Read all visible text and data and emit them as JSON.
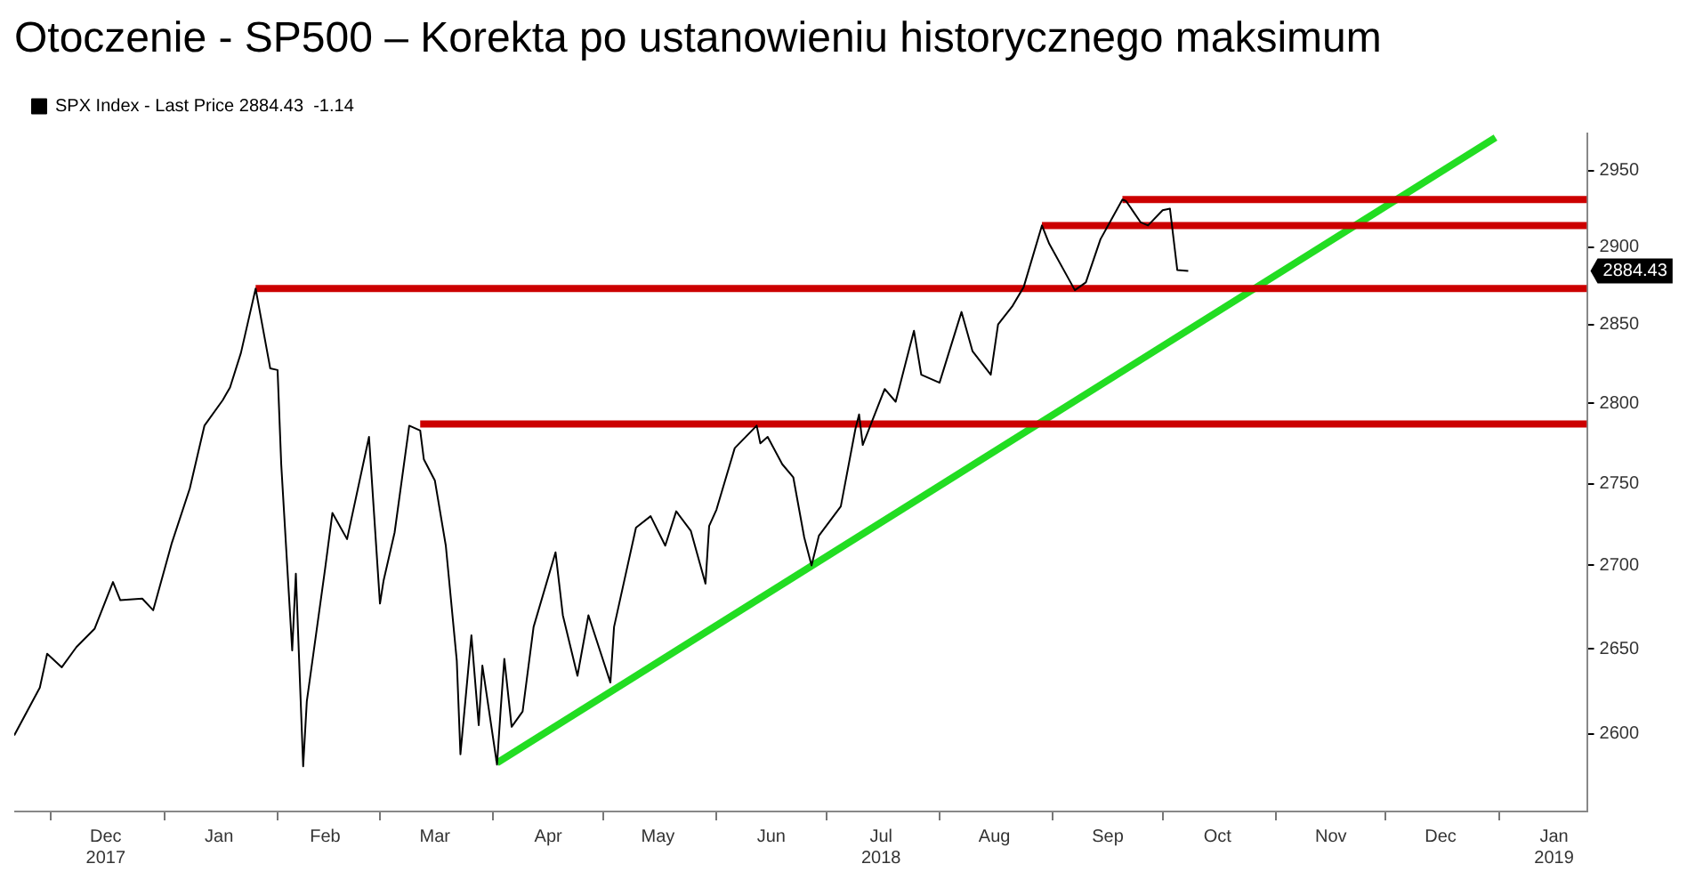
{
  "chart_data": {
    "type": "line",
    "title": "Otoczenie - SP500 – Korekta po ustanowieniu historycznego maksimum",
    "xlim": [
      "2017-11-21",
      "2019-01-25"
    ],
    "xticks": [
      {
        "value": "2017-12-01",
        "label": null
      },
      {
        "value": "2017-12-16",
        "label": "Dec\n2017"
      },
      {
        "value": "2018-01-01",
        "label": null
      },
      {
        "value": "2018-01-16",
        "label": "Jan"
      },
      {
        "value": "2018-02-01",
        "label": null
      },
      {
        "value": "2018-02-14",
        "label": "Feb"
      },
      {
        "value": "2018-03-01",
        "label": null
      },
      {
        "value": "2018-03-16",
        "label": "Mar"
      },
      {
        "value": "2018-04-01",
        "label": null
      },
      {
        "value": "2018-04-16",
        "label": "Apr"
      },
      {
        "value": "2018-05-01",
        "label": null
      },
      {
        "value": "2018-05-16",
        "label": "May"
      },
      {
        "value": "2018-06-01",
        "label": null
      },
      {
        "value": "2018-06-16",
        "label": "Jun"
      },
      {
        "value": "2018-07-01",
        "label": null
      },
      {
        "value": "2018-07-16",
        "label": "Jul\n2018"
      },
      {
        "value": "2018-08-01",
        "label": null
      },
      {
        "value": "2018-08-16",
        "label": "Aug"
      },
      {
        "value": "2018-09-01",
        "label": null
      },
      {
        "value": "2018-09-16",
        "label": "Sep"
      },
      {
        "value": "2018-10-01",
        "label": null
      },
      {
        "value": "2018-10-16",
        "label": "Oct"
      },
      {
        "value": "2018-11-01",
        "label": null
      },
      {
        "value": "2018-11-16",
        "label": "Nov"
      },
      {
        "value": "2018-12-01",
        "label": null
      },
      {
        "value": "2018-12-16",
        "label": "Dec"
      },
      {
        "value": "2019-01-01",
        "label": null
      },
      {
        "value": "2019-01-16",
        "label": "Jan\n2019"
      }
    ],
    "ylim": [
      2555,
      2975
    ],
    "yticks": [
      2600,
      2650,
      2700,
      2750,
      2800,
      2850,
      2900,
      2950
    ],
    "log": true,
    "grid": false,
    "legend": "top left",
    "marker": "none",
    "line_style": "solid",
    "annotations": [
      "2884.43"
    ],
    "series": [
      {
        "name": "SPX Index - Last Price 2884.43  -1.14",
        "color": "#000000",
        "x": [
          "2017-11-21",
          "2017-11-28",
          "2017-11-30",
          "2017-12-04",
          "2017-12-08",
          "2017-12-13",
          "2017-12-18",
          "2017-12-20",
          "2017-12-26",
          "2017-12-29",
          "2018-01-03",
          "2018-01-08",
          "2018-01-12",
          "2018-01-17",
          "2018-01-19",
          "2018-01-22",
          "2018-01-26",
          "2018-01-30",
          "2018-02-01",
          "2018-02-02",
          "2018-02-05",
          "2018-02-06",
          "2018-02-08",
          "2018-02-09",
          "2018-02-14",
          "2018-02-16",
          "2018-02-20",
          "2018-02-26",
          "2018-03-01",
          "2018-03-02",
          "2018-03-05",
          "2018-03-09",
          "2018-03-12",
          "2018-03-13",
          "2018-03-16",
          "2018-03-19",
          "2018-03-22",
          "2018-03-23",
          "2018-03-26",
          "2018-03-28",
          "2018-03-29",
          "2018-04-02",
          "2018-04-03",
          "2018-04-04",
          "2018-04-06",
          "2018-04-09",
          "2018-04-12",
          "2018-04-18",
          "2018-04-20",
          "2018-04-24",
          "2018-04-27",
          "2018-05-03",
          "2018-05-04",
          "2018-05-10",
          "2018-05-14",
          "2018-05-18",
          "2018-05-21",
          "2018-05-25",
          "2018-05-29",
          "2018-05-30",
          "2018-06-01",
          "2018-06-06",
          "2018-06-12",
          "2018-06-13",
          "2018-06-15",
          "2018-06-19",
          "2018-06-22",
          "2018-06-25",
          "2018-06-27",
          "2018-06-29",
          "2018-07-02",
          "2018-07-05",
          "2018-07-09",
          "2018-07-10",
          "2018-07-11",
          "2018-07-17",
          "2018-07-20",
          "2018-07-25",
          "2018-07-27",
          "2018-08-01",
          "2018-08-07",
          "2018-08-10",
          "2018-08-15",
          "2018-08-17",
          "2018-08-21",
          "2018-08-24",
          "2018-08-29",
          "2018-08-31",
          "2018-09-07",
          "2018-09-10",
          "2018-09-14",
          "2018-09-20",
          "2018-09-21",
          "2018-09-25",
          "2018-09-27",
          "2018-10-01",
          "2018-10-03",
          "2018-10-05",
          "2018-10-08"
        ],
        "values": [
          2599,
          2627,
          2647,
          2639,
          2651,
          2662,
          2690,
          2679,
          2680,
          2673,
          2713,
          2747,
          2786,
          2802,
          2810,
          2832,
          2873,
          2822,
          2821,
          2762,
          2649,
          2695,
          2581,
          2619,
          2698,
          2732,
          2716,
          2779,
          2677,
          2691,
          2720,
          2786,
          2783,
          2765,
          2752,
          2712,
          2643,
          2588,
          2658,
          2605,
          2640,
          2582,
          2614,
          2644,
          2604,
          2613,
          2663,
          2708,
          2670,
          2634,
          2670,
          2630,
          2663,
          2723,
          2730,
          2712,
          2733,
          2721,
          2689,
          2724,
          2734,
          2772,
          2786,
          2775,
          2779,
          2762,
          2754,
          2717,
          2700,
          2718,
          2727,
          2736,
          2784,
          2793,
          2774,
          2809,
          2801,
          2846,
          2818,
          2813,
          2858,
          2833,
          2818,
          2850,
          2862,
          2874,
          2914,
          2902,
          2872,
          2877,
          2905,
          2931,
          2930,
          2916,
          2914,
          2924,
          2925,
          2885,
          2884.43
        ]
      },
      {
        "color": "#cc0000",
        "x": [
          "2018-01-26",
          "2019-01-25"
        ],
        "values": [
          2873,
          2873
        ]
      },
      {
        "color": "#cc0000",
        "x": [
          "2018-03-12",
          "2019-01-25"
        ],
        "values": [
          2787,
          2787
        ]
      },
      {
        "color": "#cc0000",
        "x": [
          "2018-08-29",
          "2019-01-25"
        ],
        "values": [
          2914,
          2914
        ]
      },
      {
        "color": "#cc0000",
        "x": [
          "2018-09-20",
          "2019-01-25"
        ],
        "values": [
          2931,
          2931
        ]
      },
      {
        "color": "#22dd22",
        "x": [
          "2018-04-02",
          "2018-12-31"
        ],
        "values": [
          2583,
          2972
        ]
      }
    ]
  }
}
